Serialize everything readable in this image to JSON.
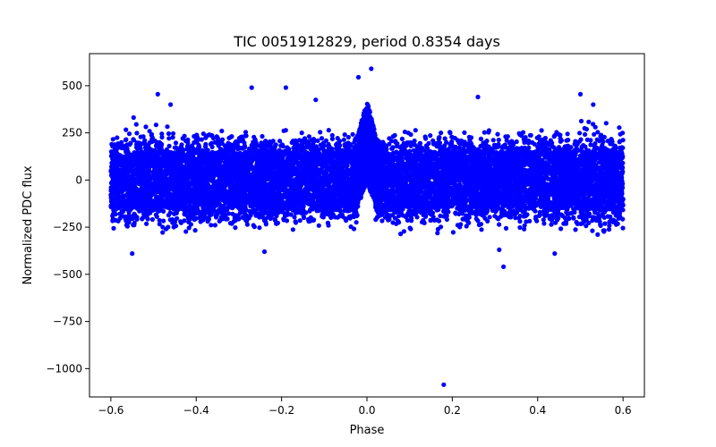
{
  "chart_data": {
    "type": "scatter",
    "title": "TIC 0051912829, period 0.8354 days",
    "xlabel": "Phase",
    "ylabel": "Normalized PDC flux",
    "xlim": [
      -0.65,
      0.65
    ],
    "ylim": [
      -1150,
      670
    ],
    "x_ticks": [
      -0.6,
      -0.4,
      -0.2,
      0.0,
      0.2,
      0.4,
      0.6
    ],
    "x_tick_labels": [
      "−0.6",
      "−0.4",
      "−0.2",
      "0.0",
      "0.2",
      "0.4",
      "0.6"
    ],
    "y_ticks": [
      500,
      250,
      0,
      -250,
      -500,
      -750,
      -1000
    ],
    "y_tick_labels": [
      "500",
      "250",
      "0",
      "−250",
      "−500",
      "−750",
      "−1000"
    ],
    "series": [
      {
        "name": "PDC flux",
        "color": "#0000ff",
        "phase_range": [
          -0.6,
          0.6
        ],
        "baseline_band": [
          -150,
          150
        ],
        "transit": {
          "center": 0.0,
          "halfwidth": 0.02,
          "peak_flux": 420
        },
        "outliers": [
          {
            "x": 0.18,
            "y": -1085
          },
          {
            "x": 0.01,
            "y": 590
          },
          {
            "x": -0.02,
            "y": 545
          },
          {
            "x": -0.27,
            "y": 490
          },
          {
            "x": -0.19,
            "y": 490
          },
          {
            "x": 0.26,
            "y": 440
          },
          {
            "x": -0.49,
            "y": 455
          },
          {
            "x": 0.5,
            "y": 455
          },
          {
            "x": -0.12,
            "y": 425
          },
          {
            "x": -0.46,
            "y": 400
          },
          {
            "x": 0.53,
            "y": 400
          },
          {
            "x": -0.55,
            "y": -390
          },
          {
            "x": 0.32,
            "y": -460
          },
          {
            "x": 0.44,
            "y": -390
          },
          {
            "x": -0.24,
            "y": -380
          },
          {
            "x": 0.31,
            "y": -370
          }
        ]
      }
    ]
  }
}
